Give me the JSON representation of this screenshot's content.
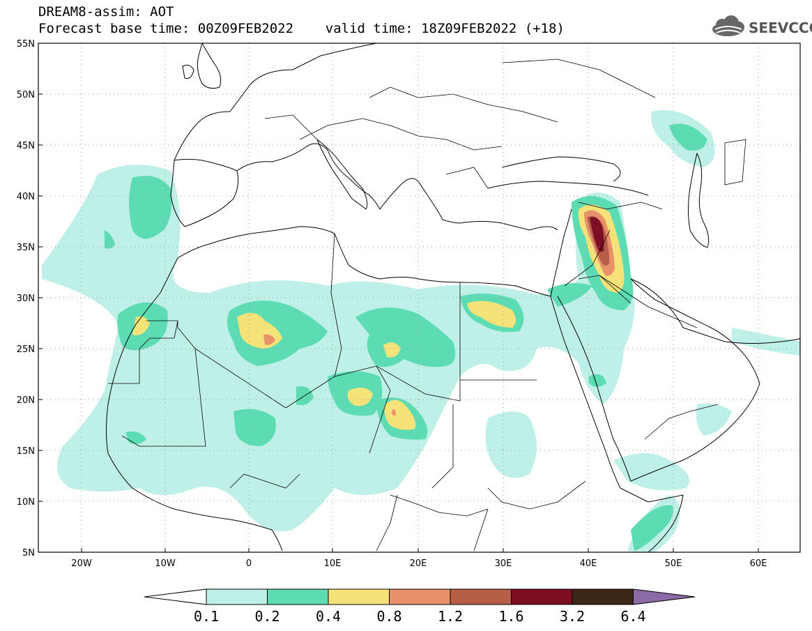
{
  "header": {
    "title_line1": "DREAM8-assim: AOT",
    "title_line2": "Forecast base time: 00Z09FEB2022    valid time: 18Z09FEB2022 (+18)",
    "logo_text": "SEEVCCC"
  },
  "map": {
    "lon_range": [
      -25,
      65
    ],
    "lat_range": [
      5,
      55
    ],
    "lat_ticks": [
      "55N",
      "50N",
      "45N",
      "40N",
      "35N",
      "30N",
      "25N",
      "20N",
      "15N",
      "10N",
      "5N"
    ],
    "lon_ticks": [
      "20W",
      "10W",
      "0",
      "10E",
      "20E",
      "30E",
      "40E",
      "50E",
      "60E"
    ],
    "grid": "dotted"
  },
  "colorbar": {
    "labels": [
      "0.1",
      "0.2",
      "0.4",
      "0.8",
      "1.2",
      "1.6",
      "3.2",
      "6.4"
    ],
    "colors": [
      "#ffffff",
      "#bff0e8",
      "#5ddcb4",
      "#f5e37a",
      "#e9916a",
      "#b75e48",
      "#7c0d22",
      "#3b2617",
      "#8b6aa6"
    ]
  }
}
